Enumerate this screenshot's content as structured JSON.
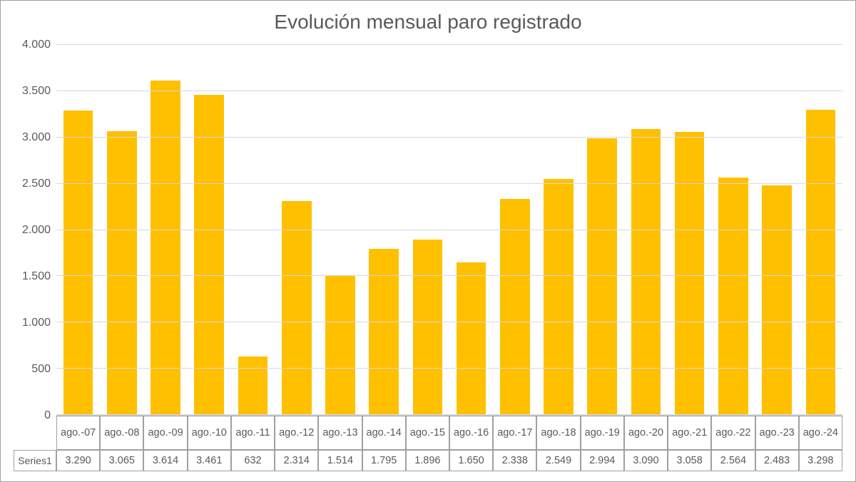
{
  "chart": {
    "type": "bar",
    "title": "Evolución mensual paro registrado",
    "title_fontsize": 28,
    "title_color": "#595959",
    "background_color": "#ffffff",
    "border_color": "#a0a0a0",
    "grid_color": "#d9d9d9",
    "axis_text_color": "#595959",
    "axis_fontsize": 16,
    "table_fontsize": 14.5,
    "bar_color": "#ffc000",
    "bar_width_ratio": 0.68,
    "ylim": [
      0,
      4000
    ],
    "ytick_step": 500,
    "yticks": [
      "0",
      "500",
      "1.000",
      "1.500",
      "2.000",
      "2.500",
      "3.000",
      "3.500",
      "4.000"
    ],
    "categories": [
      "ago.-07",
      "ago.-08",
      "ago.-09",
      "ago.-10",
      "ago.-11",
      "ago.-12",
      "ago.-13",
      "ago.-14",
      "ago.-15",
      "ago.-16",
      "ago.-17",
      "ago.-18",
      "ago.-19",
      "ago.-20",
      "ago.-21",
      "ago.-22",
      "ago.-23",
      "ago.-24"
    ],
    "values": [
      3290,
      3065,
      3614,
      3461,
      632,
      2314,
      1514,
      1795,
      1896,
      1650,
      2338,
      2549,
      2994,
      3090,
      3058,
      2564,
      2483,
      3298
    ],
    "values_display": [
      "3.290",
      "3.065",
      "3.614",
      "3.461",
      "632",
      "2.314",
      "1.514",
      "1.795",
      "1.896",
      "1.650",
      "2.338",
      "2.549",
      "2.994",
      "3.090",
      "3.058",
      "2.564",
      "2.483",
      "3.298"
    ],
    "series_label": "Series1"
  }
}
